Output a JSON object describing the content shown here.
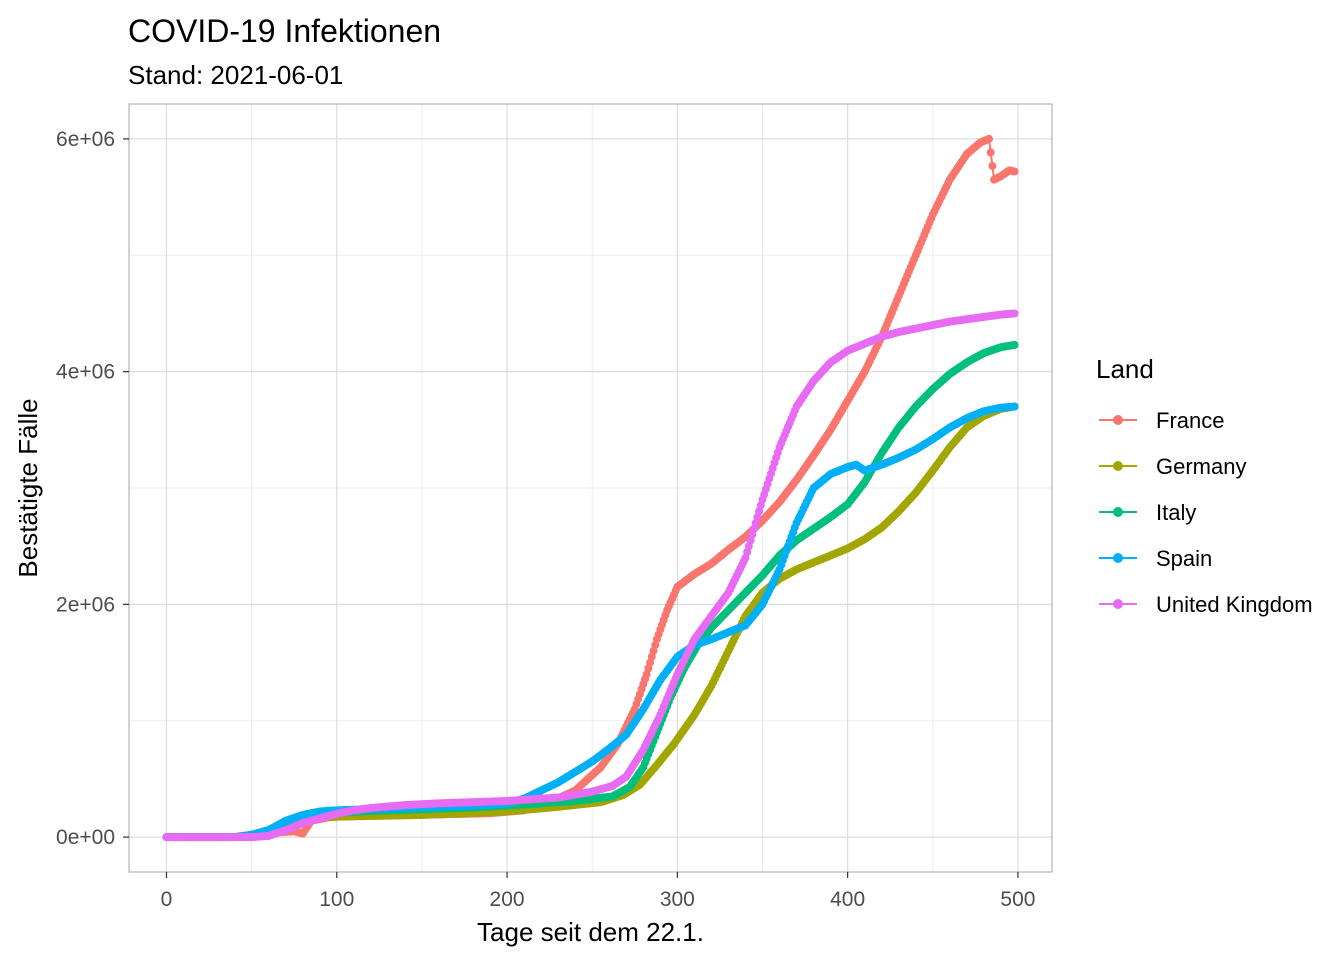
{
  "chart_data": {
    "type": "line",
    "title": "COVID-19 Infektionen",
    "subtitle": "Stand: 2021-06-01",
    "xlabel": "Tage seit dem 22.1.",
    "ylabel": "Bestätigte Fälle",
    "xlim": [
      -22,
      520
    ],
    "ylim": [
      -300000,
      6300000
    ],
    "x_ticks": [
      0,
      100,
      200,
      300,
      400,
      500
    ],
    "x_tick_labels": [
      "0",
      "100",
      "200",
      "300",
      "400",
      "500"
    ],
    "y_ticks": [
      0,
      2000000,
      4000000,
      6000000
    ],
    "y_tick_labels": [
      "0e+00",
      "2e+06",
      "4e+06",
      "6e+06"
    ],
    "grid": true,
    "legend": {
      "title": "Land",
      "position": "right"
    },
    "series": [
      {
        "name": "France",
        "color": "#F8766D",
        "points": [
          [
            0,
            0
          ],
          [
            40,
            0
          ],
          [
            55,
            5000
          ],
          [
            65,
            40000
          ],
          [
            75,
            50000
          ],
          [
            80,
            30000
          ],
          [
            85,
            140000
          ],
          [
            95,
            170000
          ],
          [
            110,
            185000
          ],
          [
            130,
            190000
          ],
          [
            160,
            195000
          ],
          [
            190,
            205000
          ],
          [
            210,
            230000
          ],
          [
            225,
            300000
          ],
          [
            240,
            400000
          ],
          [
            255,
            600000
          ],
          [
            265,
            800000
          ],
          [
            275,
            1100000
          ],
          [
            282,
            1400000
          ],
          [
            288,
            1700000
          ],
          [
            294,
            1950000
          ],
          [
            300,
            2150000
          ],
          [
            310,
            2260000
          ],
          [
            320,
            2350000
          ],
          [
            330,
            2470000
          ],
          [
            340,
            2580000
          ],
          [
            350,
            2720000
          ],
          [
            360,
            2880000
          ],
          [
            370,
            3070000
          ],
          [
            380,
            3280000
          ],
          [
            390,
            3500000
          ],
          [
            400,
            3750000
          ],
          [
            410,
            4000000
          ],
          [
            420,
            4300000
          ],
          [
            430,
            4650000
          ],
          [
            440,
            5000000
          ],
          [
            450,
            5350000
          ],
          [
            460,
            5650000
          ],
          [
            470,
            5870000
          ],
          [
            478,
            5970000
          ],
          [
            483,
            6000000
          ],
          [
            486,
            5650000
          ],
          [
            490,
            5680000
          ],
          [
            495,
            5730000
          ],
          [
            498,
            5720000
          ]
        ]
      },
      {
        "name": "Germany",
        "color": "#A3A500",
        "points": [
          [
            0,
            0
          ],
          [
            40,
            0
          ],
          [
            50,
            20000
          ],
          [
            60,
            60000
          ],
          [
            70,
            130000
          ],
          [
            80,
            160000
          ],
          [
            90,
            170000
          ],
          [
            100,
            175000
          ],
          [
            150,
            190000
          ],
          [
            200,
            220000
          ],
          [
            230,
            260000
          ],
          [
            255,
            300000
          ],
          [
            268,
            360000
          ],
          [
            278,
            450000
          ],
          [
            288,
            620000
          ],
          [
            298,
            800000
          ],
          [
            310,
            1050000
          ],
          [
            320,
            1300000
          ],
          [
            330,
            1600000
          ],
          [
            340,
            1900000
          ],
          [
            350,
            2100000
          ],
          [
            360,
            2220000
          ],
          [
            370,
            2300000
          ],
          [
            380,
            2360000
          ],
          [
            390,
            2420000
          ],
          [
            400,
            2480000
          ],
          [
            410,
            2560000
          ],
          [
            420,
            2660000
          ],
          [
            430,
            2800000
          ],
          [
            440,
            2960000
          ],
          [
            450,
            3150000
          ],
          [
            460,
            3350000
          ],
          [
            470,
            3520000
          ],
          [
            480,
            3620000
          ],
          [
            490,
            3680000
          ],
          [
            498,
            3700000
          ]
        ]
      },
      {
        "name": "Italy",
        "color": "#00BF7D",
        "points": [
          [
            0,
            0
          ],
          [
            40,
            0
          ],
          [
            50,
            10000
          ],
          [
            60,
            60000
          ],
          [
            70,
            130000
          ],
          [
            80,
            180000
          ],
          [
            90,
            200000
          ],
          [
            100,
            210000
          ],
          [
            120,
            225000
          ],
          [
            150,
            240000
          ],
          [
            180,
            255000
          ],
          [
            210,
            280000
          ],
          [
            240,
            310000
          ],
          [
            262,
            350000
          ],
          [
            272,
            430000
          ],
          [
            280,
            600000
          ],
          [
            288,
            900000
          ],
          [
            296,
            1200000
          ],
          [
            304,
            1450000
          ],
          [
            312,
            1650000
          ],
          [
            320,
            1800000
          ],
          [
            330,
            1950000
          ],
          [
            340,
            2100000
          ],
          [
            350,
            2250000
          ],
          [
            360,
            2420000
          ],
          [
            370,
            2550000
          ],
          [
            380,
            2650000
          ],
          [
            390,
            2750000
          ],
          [
            400,
            2860000
          ],
          [
            410,
            3050000
          ],
          [
            420,
            3300000
          ],
          [
            430,
            3520000
          ],
          [
            440,
            3700000
          ],
          [
            450,
            3850000
          ],
          [
            460,
            3980000
          ],
          [
            470,
            4080000
          ],
          [
            480,
            4160000
          ],
          [
            490,
            4210000
          ],
          [
            498,
            4230000
          ]
        ]
      },
      {
        "name": "Spain",
        "color": "#00B0F6",
        "points": [
          [
            0,
            0
          ],
          [
            40,
            0
          ],
          [
            50,
            20000
          ],
          [
            60,
            60000
          ],
          [
            70,
            140000
          ],
          [
            80,
            190000
          ],
          [
            90,
            220000
          ],
          [
            100,
            230000
          ],
          [
            120,
            240000
          ],
          [
            150,
            255000
          ],
          [
            180,
            270000
          ],
          [
            200,
            290000
          ],
          [
            210,
            330000
          ],
          [
            220,
            400000
          ],
          [
            230,
            470000
          ],
          [
            240,
            560000
          ],
          [
            250,
            650000
          ],
          [
            260,
            760000
          ],
          [
            270,
            880000
          ],
          [
            280,
            1100000
          ],
          [
            290,
            1350000
          ],
          [
            300,
            1550000
          ],
          [
            310,
            1650000
          ],
          [
            320,
            1700000
          ],
          [
            330,
            1760000
          ],
          [
            340,
            1820000
          ],
          [
            350,
            2000000
          ],
          [
            360,
            2300000
          ],
          [
            370,
            2700000
          ],
          [
            380,
            3000000
          ],
          [
            390,
            3120000
          ],
          [
            400,
            3180000
          ],
          [
            405,
            3200000
          ],
          [
            410,
            3150000
          ],
          [
            420,
            3200000
          ],
          [
            430,
            3260000
          ],
          [
            440,
            3330000
          ],
          [
            450,
            3420000
          ],
          [
            460,
            3520000
          ],
          [
            470,
            3600000
          ],
          [
            480,
            3660000
          ],
          [
            490,
            3690000
          ],
          [
            498,
            3700000
          ]
        ]
      },
      {
        "name": "United Kingdom",
        "color": "#E76BF3",
        "points": [
          [
            0,
            0
          ],
          [
            40,
            0
          ],
          [
            50,
            0
          ],
          [
            60,
            10000
          ],
          [
            70,
            60000
          ],
          [
            80,
            120000
          ],
          [
            90,
            160000
          ],
          [
            100,
            200000
          ],
          [
            110,
            230000
          ],
          [
            120,
            250000
          ],
          [
            140,
            275000
          ],
          [
            160,
            290000
          ],
          [
            180,
            300000
          ],
          [
            200,
            310000
          ],
          [
            210,
            320000
          ],
          [
            230,
            340000
          ],
          [
            250,
            390000
          ],
          [
            262,
            440000
          ],
          [
            270,
            520000
          ],
          [
            280,
            750000
          ],
          [
            290,
            1050000
          ],
          [
            300,
            1400000
          ],
          [
            310,
            1700000
          ],
          [
            320,
            1900000
          ],
          [
            330,
            2100000
          ],
          [
            340,
            2400000
          ],
          [
            350,
            2900000
          ],
          [
            360,
            3350000
          ],
          [
            370,
            3700000
          ],
          [
            380,
            3920000
          ],
          [
            390,
            4080000
          ],
          [
            400,
            4180000
          ],
          [
            410,
            4240000
          ],
          [
            420,
            4300000
          ],
          [
            430,
            4340000
          ],
          [
            440,
            4370000
          ],
          [
            450,
            4400000
          ],
          [
            460,
            4430000
          ],
          [
            470,
            4450000
          ],
          [
            480,
            4470000
          ],
          [
            490,
            4490000
          ],
          [
            498,
            4500000
          ]
        ]
      }
    ]
  }
}
